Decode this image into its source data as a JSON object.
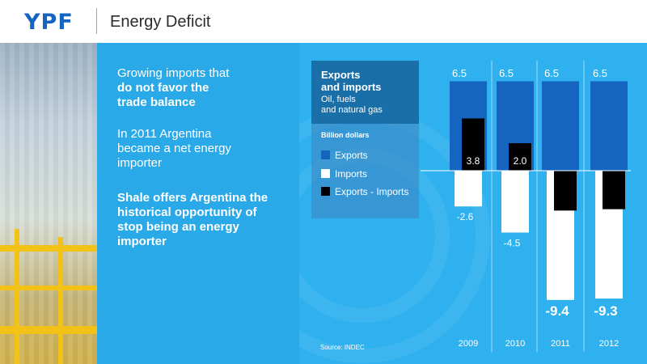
{
  "header": {
    "logo_text": "YPF",
    "title": "Energy Deficit"
  },
  "left_panel": {
    "block1_line1": "Growing imports that",
    "block1_bold1": "do not favor the",
    "block1_bold2": "trade balance",
    "block2_line1": "In 2011 Argentina",
    "block2_line2": "became a net energy",
    "block2_line3": "importer",
    "block3_line1": "Shale offers Argentina the",
    "block3_line2": "historical opportunity of",
    "block3_line3": "stop being an energy",
    "block3_line4": "importer"
  },
  "legend": {
    "title_line1": "Exports",
    "title_line2": "and imports",
    "subtitle_line1": "Oil, fuels",
    "subtitle_line2": "and natural gas",
    "units": "Billion dollars",
    "items": [
      {
        "label": "Exports",
        "color": "#1565c0"
      },
      {
        "label": "Imports",
        "color": "#ffffff"
      },
      {
        "label": "Exports - Imports",
        "color": "#000000"
      }
    ]
  },
  "source": "Source: INDEC",
  "colors": {
    "header_bg": "#ffffff",
    "logo": "#1565c0",
    "panel_left": "#2aa9e9",
    "panel_right": "#2fb1ef",
    "exports_bar": "#1565c0",
    "imports_bar": "#ffffff",
    "net_bar": "#000000"
  },
  "chart_data": {
    "type": "bar",
    "categories": [
      "2009",
      "2010",
      "2011",
      "2012"
    ],
    "series": [
      {
        "name": "Exports",
        "values": [
          6.5,
          6.5,
          6.5,
          6.5
        ]
      },
      {
        "name": "Imports",
        "values": [
          -2.6,
          -4.5,
          -9.4,
          -9.3
        ]
      },
      {
        "name": "Exports - Imports",
        "values": [
          3.8,
          2.0,
          -2.9,
          -2.8
        ]
      }
    ],
    "data_labels": {
      "Exports": [
        "6.5",
        "6.5",
        "6.5",
        "6.5"
      ],
      "Imports": [
        "-2.6",
        "-4.5",
        "-9.4",
        "-9.3"
      ],
      "Exports - Imports": [
        "3.8",
        "2.0",
        "-2.9",
        "-2.8"
      ]
    },
    "emphasized_import_labels": [
      false,
      false,
      true,
      true
    ],
    "title": "Exports and imports",
    "subtitle": "Oil, fuels and natural gas",
    "ylabel": "Billion dollars",
    "legend_position": "left",
    "grid": false
  }
}
